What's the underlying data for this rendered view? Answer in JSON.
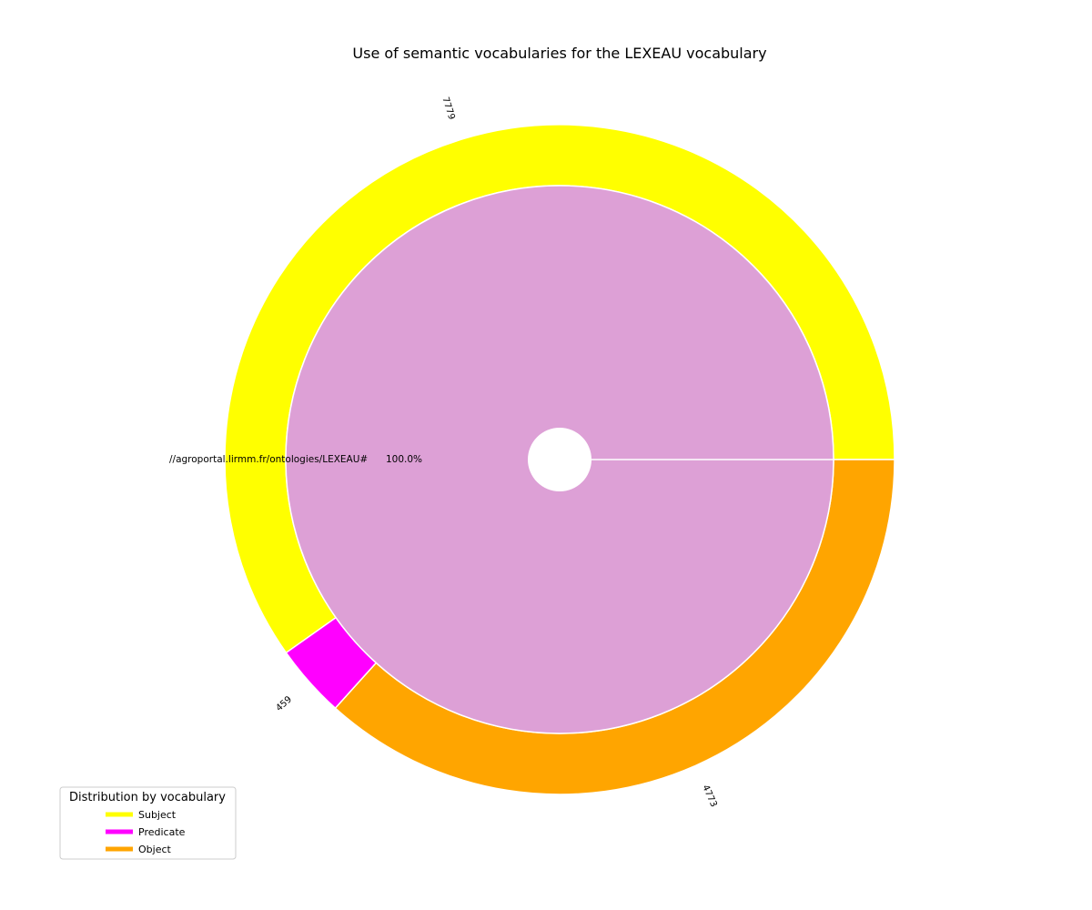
{
  "chart_data": {
    "type": "pie",
    "title": "Use of semantic vocabularies for the LEXEAU vocabulary",
    "outer_ring": {
      "categories": [
        "Subject",
        "Predicate",
        "Object"
      ],
      "values": [
        7779,
        459,
        4773
      ],
      "colors": [
        "#ffff00",
        "#ff00ff",
        "#ffa500"
      ]
    },
    "inner_pie": {
      "labels": [
        "//agroportal.lirmm.fr/ontologies/LEXEAU#"
      ],
      "values": [
        100.0
      ],
      "percent_labels": [
        "100.0%"
      ],
      "colors": [
        "#dda0d6"
      ]
    },
    "legend": {
      "title": "Distribution by vocabulary",
      "entries": [
        "Subject",
        "Predicate",
        "Object"
      ],
      "placement": "lower-left"
    }
  }
}
